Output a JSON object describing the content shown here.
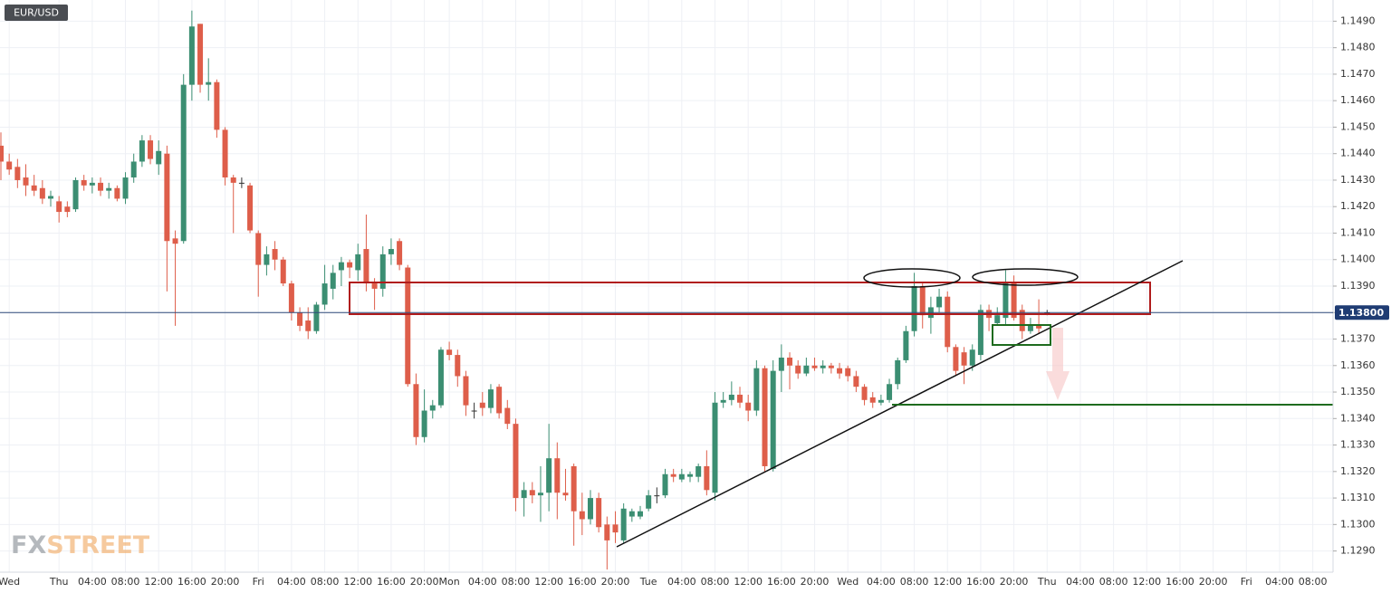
{
  "chart_data": {
    "type": "candlestick",
    "title": "EUR/USD",
    "watermark": {
      "prefix": "FX",
      "suffix": "STREET"
    },
    "up_color": "#3b8e72",
    "down_color": "#de5e4a",
    "flat_color": "#333333",
    "grid": true,
    "last_price": {
      "value": 1.138,
      "label": "1.13800"
    },
    "ylim": [
      1.1282,
      1.1498
    ],
    "yticks": [
      {
        "value": 1.129,
        "label": "1.1290"
      },
      {
        "value": 1.13,
        "label": "1.1300"
      },
      {
        "value": 1.131,
        "label": "1.1310"
      },
      {
        "value": 1.132,
        "label": "1.1320"
      },
      {
        "value": 1.133,
        "label": "1.1330"
      },
      {
        "value": 1.134,
        "label": "1.1340"
      },
      {
        "value": 1.135,
        "label": "1.1350"
      },
      {
        "value": 1.136,
        "label": "1.1360"
      },
      {
        "value": 1.137,
        "label": "1.1370"
      },
      {
        "value": 1.138,
        "label": "1.1380"
      },
      {
        "value": 1.139,
        "label": "1.1390"
      },
      {
        "value": 1.14,
        "label": "1.1400"
      },
      {
        "value": 1.141,
        "label": "1.1410"
      },
      {
        "value": 1.142,
        "label": "1.1420"
      },
      {
        "value": 1.143,
        "label": "1.1430"
      },
      {
        "value": 1.144,
        "label": "1.1440"
      },
      {
        "value": 1.145,
        "label": "1.1450"
      },
      {
        "value": 1.146,
        "label": "1.1460"
      },
      {
        "value": 1.147,
        "label": "1.1470"
      },
      {
        "value": 1.148,
        "label": "1.1480"
      },
      {
        "value": 1.149,
        "label": "1.1490"
      }
    ],
    "categories": [
      null,
      "Wed",
      null,
      null,
      null,
      null,
      null,
      "Thu",
      null,
      null,
      null,
      "04:00",
      null,
      null,
      null,
      "08:00",
      null,
      null,
      null,
      "12:00",
      null,
      null,
      null,
      "16:00",
      null,
      null,
      null,
      "20:00",
      null,
      null,
      null,
      "Fri",
      null,
      null,
      null,
      "04:00",
      null,
      null,
      null,
      "08:00",
      null,
      null,
      null,
      "12:00",
      null,
      null,
      null,
      "16:00",
      null,
      null,
      null,
      "20:00",
      null,
      null,
      "Mon",
      null,
      null,
      null,
      "04:00",
      null,
      null,
      null,
      "08:00",
      null,
      null,
      null,
      "12:00",
      null,
      null,
      null,
      "16:00",
      null,
      null,
      null,
      "20:00",
      null,
      null,
      null,
      "Tue",
      null,
      null,
      null,
      "04:00",
      null,
      null,
      null,
      "08:00",
      null,
      null,
      null,
      "12:00",
      null,
      null,
      null,
      "16:00",
      null,
      null,
      null,
      "20:00",
      null,
      null,
      null,
      "Wed",
      null,
      null,
      null,
      "04:00",
      null,
      null,
      null,
      "08:00",
      null,
      null,
      null,
      "12:00",
      null,
      null,
      null,
      "16:00",
      null,
      null,
      null,
      "20:00",
      null,
      null,
      null,
      "Thu",
      null,
      null,
      null,
      "04:00",
      null,
      null,
      null,
      "08:00",
      null,
      null,
      null,
      "12:00",
      null,
      null,
      null,
      "16:00",
      null,
      null,
      null,
      "20:00",
      null,
      null,
      null,
      "Fri",
      null,
      null,
      null,
      "04:00",
      null,
      null,
      null,
      "08:00",
      null,
      null
    ],
    "open": [
      1.1443,
      1.1437,
      1.1435,
      1.1431,
      1.1428,
      1.1427,
      1.1423,
      1.1422,
      1.142,
      1.1419,
      1.143,
      1.1428,
      1.1429,
      1.1426,
      1.1427,
      1.1423,
      1.1431,
      1.1437,
      1.1445,
      1.1436,
      1.144,
      1.1408,
      1.1407,
      1.1466,
      1.1489,
      1.1466,
      1.1467,
      1.1449,
      1.1431,
      1.1429,
      1.1428,
      1.141,
      1.1398,
      1.1404,
      1.14,
      1.1391,
      1.138,
      1.1377,
      1.1373,
      1.1383,
      1.1389,
      1.1396,
      1.1399,
      1.1396,
      1.1404,
      1.1391,
      1.1389,
      1.1402,
      1.1407,
      1.1397,
      1.1353,
      1.1333,
      1.1343,
      1.1345,
      1.1366,
      1.1364,
      1.1356,
      1.1343,
      1.1346,
      1.1344,
      1.1352,
      1.1344,
      1.1338,
      1.131,
      1.1313,
      1.1311,
      1.1312,
      1.1325,
      1.1312,
      1.1322,
      1.1305,
      1.1302,
      1.131,
      1.13,
      1.13,
      1.1294,
      1.1303,
      1.1303,
      1.1306,
      1.1311,
      1.1311,
      1.1319,
      1.1317,
      1.1318,
      1.1318,
      1.1322,
      1.1312,
      1.1346,
      1.1347,
      1.1349,
      1.1346,
      1.1343,
      1.1359,
      1.1321,
      1.1358,
      1.1363,
      1.136,
      1.1357,
      1.136,
      1.1359,
      1.136,
      1.1359,
      1.1359,
      1.1356,
      1.1352,
      1.1348,
      1.1346,
      1.1347,
      1.1353,
      1.1362,
      1.1373,
      1.139,
      1.1378,
      1.1382,
      1.1386,
      1.1367,
      1.1365,
      1.136,
      1.1364,
      1.1381,
      1.1376,
      1.1378,
      1.1391,
      1.1381,
      1.1373,
      1.1375,
      1.138,
      null,
      null,
      null,
      null,
      null,
      null,
      null,
      null,
      null,
      null,
      null,
      null,
      null,
      null,
      null,
      null,
      null,
      null,
      null,
      null,
      null,
      null,
      null,
      null,
      null,
      null,
      null,
      null,
      null,
      null,
      null,
      null,
      null,
      null
    ],
    "high": [
      1.1448,
      1.144,
      1.1438,
      1.1436,
      1.1432,
      1.143,
      1.1426,
      1.1424,
      1.1422,
      1.1431,
      1.1432,
      1.1431,
      1.1431,
      1.1429,
      1.1428,
      1.1433,
      1.144,
      1.1447,
      1.1447,
      1.1445,
      1.1443,
      1.1411,
      1.147,
      1.1494,
      1.1489,
      1.1476,
      1.1468,
      1.145,
      1.1432,
      1.1431,
      1.1429,
      1.1411,
      1.1405,
      1.1407,
      1.1401,
      1.1392,
      1.1382,
      1.1382,
      1.1384,
      1.1398,
      1.1398,
      1.1401,
      1.14,
      1.1406,
      1.1417,
      1.1393,
      1.1405,
      1.1408,
      1.1408,
      1.1398,
      1.1357,
      1.1351,
      1.1347,
      1.1367,
      1.1369,
      1.1366,
      1.1358,
      1.1346,
      1.135,
      1.1353,
      1.1353,
      1.1347,
      1.134,
      1.1316,
      1.1316,
      1.1322,
      1.1338,
      1.1331,
      1.1321,
      1.1323,
      1.1312,
      1.1313,
      1.1312,
      1.1303,
      1.1305,
      1.1308,
      1.1306,
      1.1307,
      1.1313,
      1.1314,
      1.1321,
      1.1321,
      1.1321,
      1.132,
      1.1323,
      1.1328,
      1.135,
      1.135,
      1.1354,
      1.1352,
      1.1349,
      1.1362,
      1.136,
      1.1362,
      1.1368,
      1.1365,
      1.1362,
      1.1363,
      1.1363,
      1.1362,
      1.1361,
      1.1361,
      1.136,
      1.1358,
      1.1353,
      1.135,
      1.1349,
      1.1355,
      1.1363,
      1.1375,
      1.1395,
      1.1391,
      1.1386,
      1.1389,
      1.1388,
      1.1368,
      1.1367,
      1.1368,
      1.1383,
      1.1383,
      1.1382,
      1.1396,
      1.1394,
      1.1383,
      1.1378,
      1.1385,
      1.1381,
      null,
      null,
      null,
      null,
      null,
      null,
      null,
      null,
      null,
      null,
      null,
      null,
      null,
      null,
      null,
      null,
      null,
      null,
      null,
      null,
      null,
      null,
      null,
      null,
      null,
      null,
      null,
      null,
      null,
      null,
      null,
      null,
      null,
      null
    ],
    "low": [
      1.143,
      1.1432,
      1.1427,
      1.1424,
      1.1424,
      1.1421,
      1.142,
      1.1414,
      1.1416,
      1.1418,
      1.1426,
      1.1425,
      1.1424,
      1.1423,
      1.1422,
      1.1421,
      1.1429,
      1.1435,
      1.1436,
      1.1432,
      1.1388,
      1.1375,
      1.1406,
      1.146,
      1.1463,
      1.146,
      1.1446,
      1.1428,
      1.141,
      1.1427,
      1.141,
      1.1386,
      1.1394,
      1.1396,
      1.139,
      1.1377,
      1.1373,
      1.137,
      1.1372,
      1.1381,
      1.1385,
      1.139,
      1.1393,
      1.1392,
      1.1388,
      1.1381,
      1.1386,
      1.1398,
      1.1396,
      1.1352,
      1.133,
      1.1331,
      1.134,
      1.1344,
      1.1362,
      1.1352,
      1.1341,
      1.134,
      1.1341,
      1.1342,
      1.134,
      1.1336,
      1.1305,
      1.1303,
      1.1308,
      1.1301,
      1.1305,
      1.1302,
      1.1309,
      1.1292,
      1.1296,
      1.13,
      1.1297,
      1.1283,
      1.1293,
      1.1293,
      1.1301,
      1.1302,
      1.1305,
      1.1308,
      1.131,
      1.1316,
      1.1316,
      1.1316,
      1.1316,
      1.1311,
      1.1309,
      1.1344,
      1.1345,
      1.1344,
      1.1339,
      1.1341,
      1.132,
      1.132,
      1.135,
      1.1351,
      1.1355,
      1.1356,
      1.1358,
      1.1357,
      1.1357,
      1.1355,
      1.1354,
      1.135,
      1.1345,
      1.1344,
      1.1345,
      1.1346,
      1.1351,
      1.1361,
      1.1371,
      1.1374,
      1.1372,
      1.138,
      1.1365,
      1.1356,
      1.1353,
      1.1358,
      1.1362,
      1.1373,
      1.1375,
      1.1375,
      1.1377,
      1.137,
      1.1372,
      1.1372,
      1.1379,
      null,
      null,
      null,
      null,
      null,
      null,
      null,
      null,
      null,
      null,
      null,
      null,
      null,
      null,
      null,
      null,
      null,
      null,
      null,
      null,
      null,
      null,
      null,
      null,
      null,
      null,
      null,
      null,
      null,
      null,
      null,
      null,
      null,
      null
    ],
    "close": [
      1.1437,
      1.1434,
      1.143,
      1.1428,
      1.1426,
      1.1423,
      1.1424,
      1.1418,
      1.1418,
      1.143,
      1.1428,
      1.1429,
      1.1426,
      1.1427,
      1.1423,
      1.1431,
      1.1437,
      1.1445,
      1.1438,
      1.1441,
      1.1407,
      1.1406,
      1.1466,
      1.1488,
      1.1466,
      1.1467,
      1.1449,
      1.1431,
      1.1429,
      1.1429,
      1.1411,
      1.1398,
      1.1402,
      1.14,
      1.1391,
      1.138,
      1.1375,
      1.1373,
      1.1383,
      1.1391,
      1.1395,
      1.1399,
      1.1397,
      1.1402,
      1.1391,
      1.1389,
      1.1402,
      1.1404,
      1.1398,
      1.1353,
      1.1333,
      1.1343,
      1.1345,
      1.1366,
      1.1364,
      1.1356,
      1.1345,
      1.1343,
      1.1344,
      1.1351,
      1.1342,
      1.1338,
      1.131,
      1.1313,
      1.1311,
      1.1312,
      1.1325,
      1.1312,
      1.1311,
      1.1305,
      1.1302,
      1.131,
      1.1299,
      1.1294,
      1.1297,
      1.1306,
      1.1305,
      1.1305,
      1.1311,
      1.1311,
      1.1319,
      1.1318,
      1.1319,
      1.1319,
      1.1322,
      1.1313,
      1.1346,
      1.1347,
      1.1349,
      1.1346,
      1.1343,
      1.1359,
      1.1322,
      1.1358,
      1.1363,
      1.136,
      1.1357,
      1.136,
      1.1359,
      1.136,
      1.1359,
      1.1357,
      1.1356,
      1.1352,
      1.1347,
      1.1346,
      1.1347,
      1.1353,
      1.1362,
      1.1373,
      1.139,
      1.1379,
      1.1382,
      1.1386,
      1.1367,
      1.1358,
      1.136,
      1.1366,
      1.1381,
      1.1378,
      1.1379,
      1.1391,
      1.1378,
      1.1373,
      1.1375,
      1.1374,
      1.138,
      null,
      null,
      null,
      null,
      null,
      null,
      null,
      null,
      null,
      null,
      null,
      null,
      null,
      null,
      null,
      null,
      null,
      null,
      null,
      null,
      null,
      null,
      null,
      null,
      null,
      null,
      null,
      null,
      null,
      null,
      null,
      null,
      null,
      null
    ]
  }
}
